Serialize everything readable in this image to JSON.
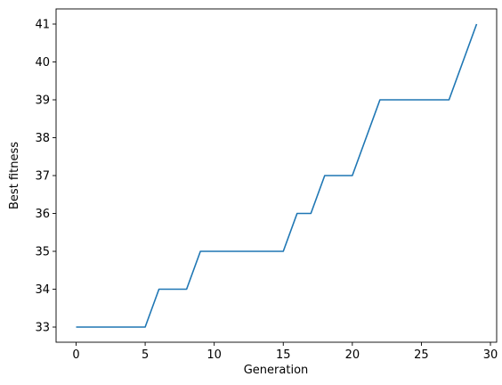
{
  "chart_data": {
    "type": "line",
    "title": "",
    "xlabel": "Generation",
    "ylabel": "Best fitness",
    "xlim": [
      -1.45,
      30.45
    ],
    "ylim": [
      32.6,
      41.4
    ],
    "xticks": [
      0,
      5,
      10,
      15,
      20,
      25,
      30
    ],
    "yticks": [
      33,
      34,
      35,
      36,
      37,
      38,
      39,
      40,
      41
    ],
    "grid": false,
    "legend": "none",
    "series": [
      {
        "color": "#1f77b4",
        "x": [
          0,
          1,
          2,
          3,
          4,
          5,
          6,
          7,
          8,
          9,
          10,
          11,
          12,
          13,
          14,
          15,
          16,
          17,
          18,
          19,
          20,
          21,
          22,
          23,
          24,
          25,
          26,
          27,
          28,
          29
        ],
        "y": [
          33,
          33,
          33,
          33,
          33,
          33,
          34,
          34,
          34,
          35,
          35,
          35,
          35,
          35,
          35,
          35,
          36,
          36,
          37,
          37,
          37,
          38,
          39,
          39,
          39,
          39,
          39,
          39,
          40,
          41
        ]
      }
    ]
  }
}
